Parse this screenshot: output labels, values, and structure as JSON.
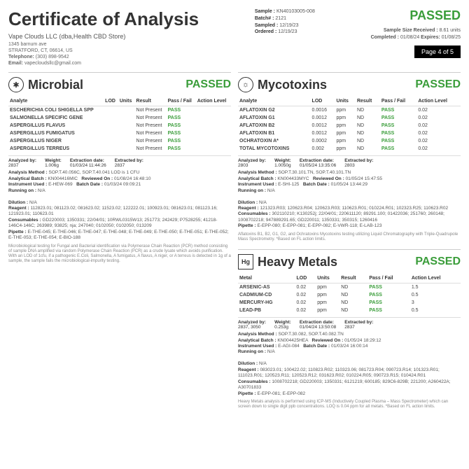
{
  "header": {
    "title": "Certificate of Analysis",
    "company": "Vape Clouds LLC (dba,Health CBD Store)",
    "addr1": "1345 barnum ave",
    "addr2": "STRATFORD, CT, 06614, US",
    "tel_label": "Telephone:",
    "tel": "(303) 898-9542",
    "email_label": "Email:",
    "email": "vapecloudsllc@gmail.com",
    "sample_label": "Sample :",
    "sample": "KN40103005-008",
    "batch_label": "Batch# :",
    "batch": "2121",
    "sampled_label": "Sampled :",
    "sampled": "12/19/23",
    "ordered_label": "Ordered :",
    "ordered": "12/19/23",
    "overall_status": "PASSED",
    "size_label": "Sample Size Received :",
    "size": "8.61 units",
    "completed_label": "Completed :",
    "completed": "01/08/24",
    "expires_label": "Expires:",
    "expires": "01/08/25",
    "page": "Page 4 of 5"
  },
  "microbial": {
    "title": "Microbial",
    "status": "PASSED",
    "cols": [
      "Analyte",
      "LOD",
      "Units",
      "Result",
      "Pass / Fail",
      "Action Level"
    ],
    "rows": [
      [
        "ESCHERICHIA COLI SHIGELLA SPP",
        "",
        "",
        "Not Present",
        "PASS",
        ""
      ],
      [
        "SALMONELLA SPECIFIC GENE",
        "",
        "",
        "Not Present",
        "PASS",
        ""
      ],
      [
        "ASPERGILLUS FLAVUS",
        "",
        "",
        "Not Present",
        "PASS",
        ""
      ],
      [
        "ASPERGILLUS FUMIGATUS",
        "",
        "",
        "Not Present",
        "PASS",
        ""
      ],
      [
        "ASPERGILLUS NIGER",
        "",
        "",
        "Not Present",
        "PASS",
        ""
      ],
      [
        "ASPERGILLUS TERREUS",
        "",
        "",
        "Not Present",
        "PASS",
        ""
      ]
    ],
    "analyzed_by": "2837",
    "weight": "1.006g",
    "extraction_date": "01/03/24 11:44:26",
    "extracted_by": "2837",
    "method": "SOP.T.40.056C, SOP.T.40.041 LOD is 1 CFU",
    "batch": "KN004416MIC",
    "reviewed": "01/08/24 16:48:10",
    "instrument": "E-HEW-069",
    "batch_date": "01/03/24 09:09:21",
    "running": "N/A",
    "dilution": "N/A",
    "reagent": "112823.01; 081123.02; 081623.02; 11523.02; 122222.01; 100923.01; 081623.01; 081123.16; 121923.01; 110623.01",
    "consumables": "GD220003; 1350331; 22/04/01; 10RWL0315W13; 251773; 242429; P7528255; 41218-146C4-146C; 263989; 93825; nja; 247040; 0102050; 0102050; 013209",
    "pipette": "E-THE-045; E-THE-046; E-THE-047; E-THE-048; E-THE-049; E-THE-050; E-THE-051; E-THE-052; E-THE-053; E-THE-054; E-BIO-188",
    "note": "Microbiological testing for Fungal and Bacterial identification via Polymerase Chain Reaction (PCR) method consisting of sample DNA amplified via random Polymerase Chain Reaction (PCR) as a crude lysate which avoids purification. With an LOD of 1cfu, if a pathogenic E.Coli, Salmonella, A fumigatus, A flavus, A niger, or A terreus is detected in 1g of a sample, the sample fails the microbiological-impurity testing."
  },
  "mycotoxins": {
    "title": "Mycotoxins",
    "status": "PASSED",
    "cols": [
      "Analyte",
      "LOD",
      "Units",
      "Result",
      "Pass / Fail",
      "Action Level"
    ],
    "rows": [
      [
        "AFLATOXIN G2",
        "0.0016",
        "ppm",
        "ND",
        "PASS",
        "0.02"
      ],
      [
        "AFLATOXIN G1",
        "0.0012",
        "ppm",
        "ND",
        "PASS",
        "0.02"
      ],
      [
        "AFLATOXIN B2",
        "0.0012",
        "ppm",
        "ND",
        "PASS",
        "0.02"
      ],
      [
        "AFLATOXIN B1",
        "0.0012",
        "ppm",
        "ND",
        "PASS",
        "0.02"
      ],
      [
        "OCHRATOXIN A*",
        "0.0002",
        "ppm",
        "ND",
        "PASS",
        "0.02"
      ],
      [
        "TOTAL MYCOTOXINS",
        "0.002",
        "ppm",
        "ND",
        "PASS",
        "0.02"
      ]
    ],
    "analyzed_by": "2803",
    "weight": "1.0050g",
    "extraction_date": "01/05/24 13:35:06",
    "extracted_by": "2803",
    "method": "SOP.T.30.101.TN, SOP.T.40.101.TN",
    "batch": "KN004433MYC",
    "reviewed": "01/05/24 15:47:55",
    "instrument": "E-SHI-125",
    "batch_date": "01/05/24 13:44:29",
    "running": "N/A",
    "dilution": "N/A",
    "reagent": "121323.R03; 120623.R04; 120623.R03; 110623.R01; 010224.R01; 102323.R25; 110623.R02",
    "consumables": "302110210; K130252j; 22/04/01; 220611120; 89291.100; 01422036; 251760; 260148; 1008702218; 947889291.65; GD220011; 1350331; 350315; 1260416",
    "pipette": "E-EPP-080; E-EPP-081; E-EPP-082; E-VWR-118; E-LAB-123",
    "note": "Aflatoxins B1, B2, G1, G2, and Ochratoxins Mycotoxins testing utilizing Liquid Chromatography with Triple-Quadrupole Mass Spectrometry. *Based on FL action limits."
  },
  "heavymetals": {
    "title": "Heavy Metals",
    "status": "PASSED",
    "cols": [
      "Metal",
      "LOD",
      "Units",
      "Result",
      "Pass / Fail",
      "Action Level"
    ],
    "rows": [
      [
        "ARSENIC-AS",
        "0.02",
        "ppm",
        "ND",
        "PASS",
        "1.5"
      ],
      [
        "CADMIUM-CD",
        "0.02",
        "ppm",
        "ND",
        "PASS",
        "0.5"
      ],
      [
        "MERCURY-HG",
        "0.02",
        "ppm",
        "ND",
        "PASS",
        "3"
      ],
      [
        "LEAD-PB",
        "0.02",
        "ppm",
        "ND",
        "PASS",
        "0.5"
      ]
    ],
    "analyzed_by": "2837, 3050",
    "weight": "0.253g",
    "extraction_date": "01/04/24 13:50:08",
    "extracted_by": "2837",
    "method": "SOP.T.30.082, SOP.T.40.082.TN",
    "batch": "KN004425HEA",
    "reviewed": "01/05/24 18:29:12",
    "instrument": "E-AGI-084",
    "batch_date": "01/03/24 16:00:14",
    "running": "N/A",
    "dilution": "N/A",
    "reagent": "083023.01; 100422.02; 110823.R02; 110323.06; 081723.R04; 090723.R14; 101323.R01; 111023.R01; 120523.R11; 120523.R12; 031623.R02; 010224.R05; 090723.R15; 010424.R01",
    "consumables": "1008702218; GD220003; 1350331; 6121219; 600185; 829C6-829B; 221200; A260422A; A30701833",
    "pipette": "E-EPP-081; E-EPP-082",
    "note": "Heavy Metals analysis is performed using ICP-MS (Inductively Coupled Plasma – Mass Spectrometer) which can screen down to single digit ppb concentrations. LOQ is 0.04 ppm for all metals. *Based on FL action limits."
  },
  "labels": {
    "analyzed_by": "Analyzed by:",
    "weight": "Weight:",
    "extraction_date": "Extraction date:",
    "extracted_by": "Extracted by:",
    "method": "Analysis Method :",
    "abatch": "Analytical Batch :",
    "reviewed": "Reviewed On :",
    "instrument": "Instrument Used :",
    "bdate": "Batch Date :",
    "running": "Running on :",
    "dilution": "Dilution :",
    "reagent": "Reagent :",
    "consumables": "Consumables :",
    "pipette": "Pipette :"
  }
}
